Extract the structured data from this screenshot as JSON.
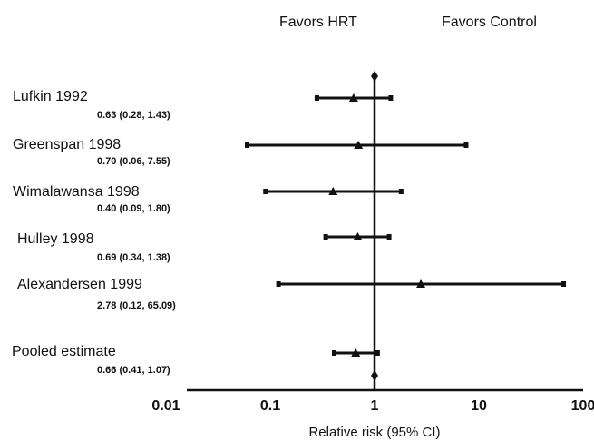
{
  "chart_data": {
    "type": "forest",
    "header_left": "Favors HRT",
    "header_right": "Favors Control",
    "xlabel": "Relative risk (95% CI)",
    "x_scale": "log",
    "xlim": [
      0.01,
      100
    ],
    "x_ticks": [
      "0.01",
      "0.1",
      "1",
      "10",
      "100"
    ],
    "reference_line": 1,
    "studies": [
      {
        "name": "Lufkin 1992",
        "label": "0.63 (0.28, 1.43)",
        "estimate": 0.63,
        "lower": 0.28,
        "upper": 1.43
      },
      {
        "name": "Greenspan 1998",
        "label": "0.70 (0.06, 7.55)",
        "estimate": 0.7,
        "lower": 0.06,
        "upper": 7.55
      },
      {
        "name": "Wimalawansa 1998",
        "label": "0.40 (0.09, 1.80)",
        "estimate": 0.4,
        "lower": 0.09,
        "upper": 1.8
      },
      {
        "name": "Hulley 1998",
        "label": "0.69 (0.34, 1.38)",
        "estimate": 0.69,
        "lower": 0.34,
        "upper": 1.38
      },
      {
        "name": "Alexandersen 1999",
        "label": "2.78 (0.12, 65.09)",
        "estimate": 2.78,
        "lower": 0.12,
        "upper": 65.09
      },
      {
        "name": "Pooled estimate",
        "label": "0.66 (0.41, 1.07)",
        "estimate": 0.66,
        "lower": 0.41,
        "upper": 1.07
      }
    ]
  }
}
